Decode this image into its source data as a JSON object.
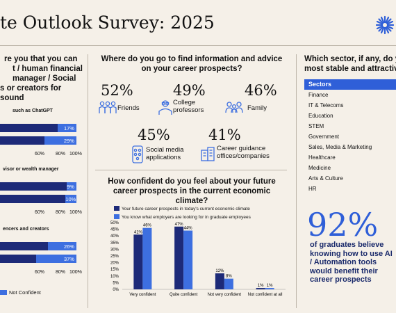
{
  "header": {
    "title": "te Outlook Survey: 2025"
  },
  "colors": {
    "navy": "#1d2a78",
    "blue": "#3d6fe0",
    "accent": "#2f5fd8"
  },
  "left_panel": {
    "question_lines": [
      "re you that you can",
      "t / human financial",
      "manager / Social",
      "s or creators for sound"
    ],
    "sections": [
      {
        "label": "such as ChatGPT",
        "confident_value": "",
        "not_confident_value": "",
        "values": [
          17,
          29
        ]
      },
      {
        "label": "visor or wealth manager",
        "values": [
          9,
          10
        ]
      },
      {
        "label": "encers and creators",
        "values": [
          26,
          37
        ]
      }
    ],
    "axis_ticks": [
      "60%",
      "80%",
      "100%"
    ],
    "legend_not_confident": "Not Confident"
  },
  "middle_top": {
    "question": "Where do you go to find information and advice on your career prospects?",
    "stats": [
      {
        "value": "52%",
        "label": "Friends",
        "icon": "friends-icon"
      },
      {
        "value": "49%",
        "label": "College professors",
        "icon": "professor-icon"
      },
      {
        "value": "46%",
        "label": "Family",
        "icon": "family-icon"
      },
      {
        "value": "45%",
        "label": "Social media applications",
        "icon": "social-media-icon"
      },
      {
        "value": "41%",
        "label": "Career guidance offices/companies",
        "icon": "office-building-icon"
      }
    ]
  },
  "chart_data": {
    "type": "bar",
    "title": "How confident do you feel about your future career prospects in the current economic climate?",
    "categories": [
      "Very confident",
      "Quite confident",
      "Not very confident",
      "Not confident at all"
    ],
    "series": [
      {
        "name": "Your future career prospects in today's current economic climate",
        "color": "#1d2a78",
        "values": [
          41,
          47,
          12,
          1
        ]
      },
      {
        "name": "You know what employers are looking for in graduate employees",
        "color": "#3d6fe0",
        "values": [
          46,
          44,
          8,
          1
        ]
      }
    ],
    "ylim": [
      0,
      50
    ],
    "yticks": [
      "0%",
      "5%",
      "10%",
      "15%",
      "20%",
      "25%",
      "30%",
      "35%",
      "40%",
      "45%",
      "50%"
    ],
    "legend_position": "top-left",
    "grid": false
  },
  "right_panel": {
    "question_lines": [
      "Which sector, if any, do y",
      "most stable and attractiv"
    ],
    "sectors_header": "Sectors",
    "sectors": [
      "Finance",
      "IT & Telecoms",
      "Education",
      "STEM",
      "Government",
      "Sales, Media & Marketing",
      "Healthcare",
      "Medicine",
      "Arts & Culture",
      "HR"
    ],
    "big_stat": "92%",
    "big_stat_text": "of graduates believe knowing how to use AI / Automation tools would benefit their career prospects"
  }
}
